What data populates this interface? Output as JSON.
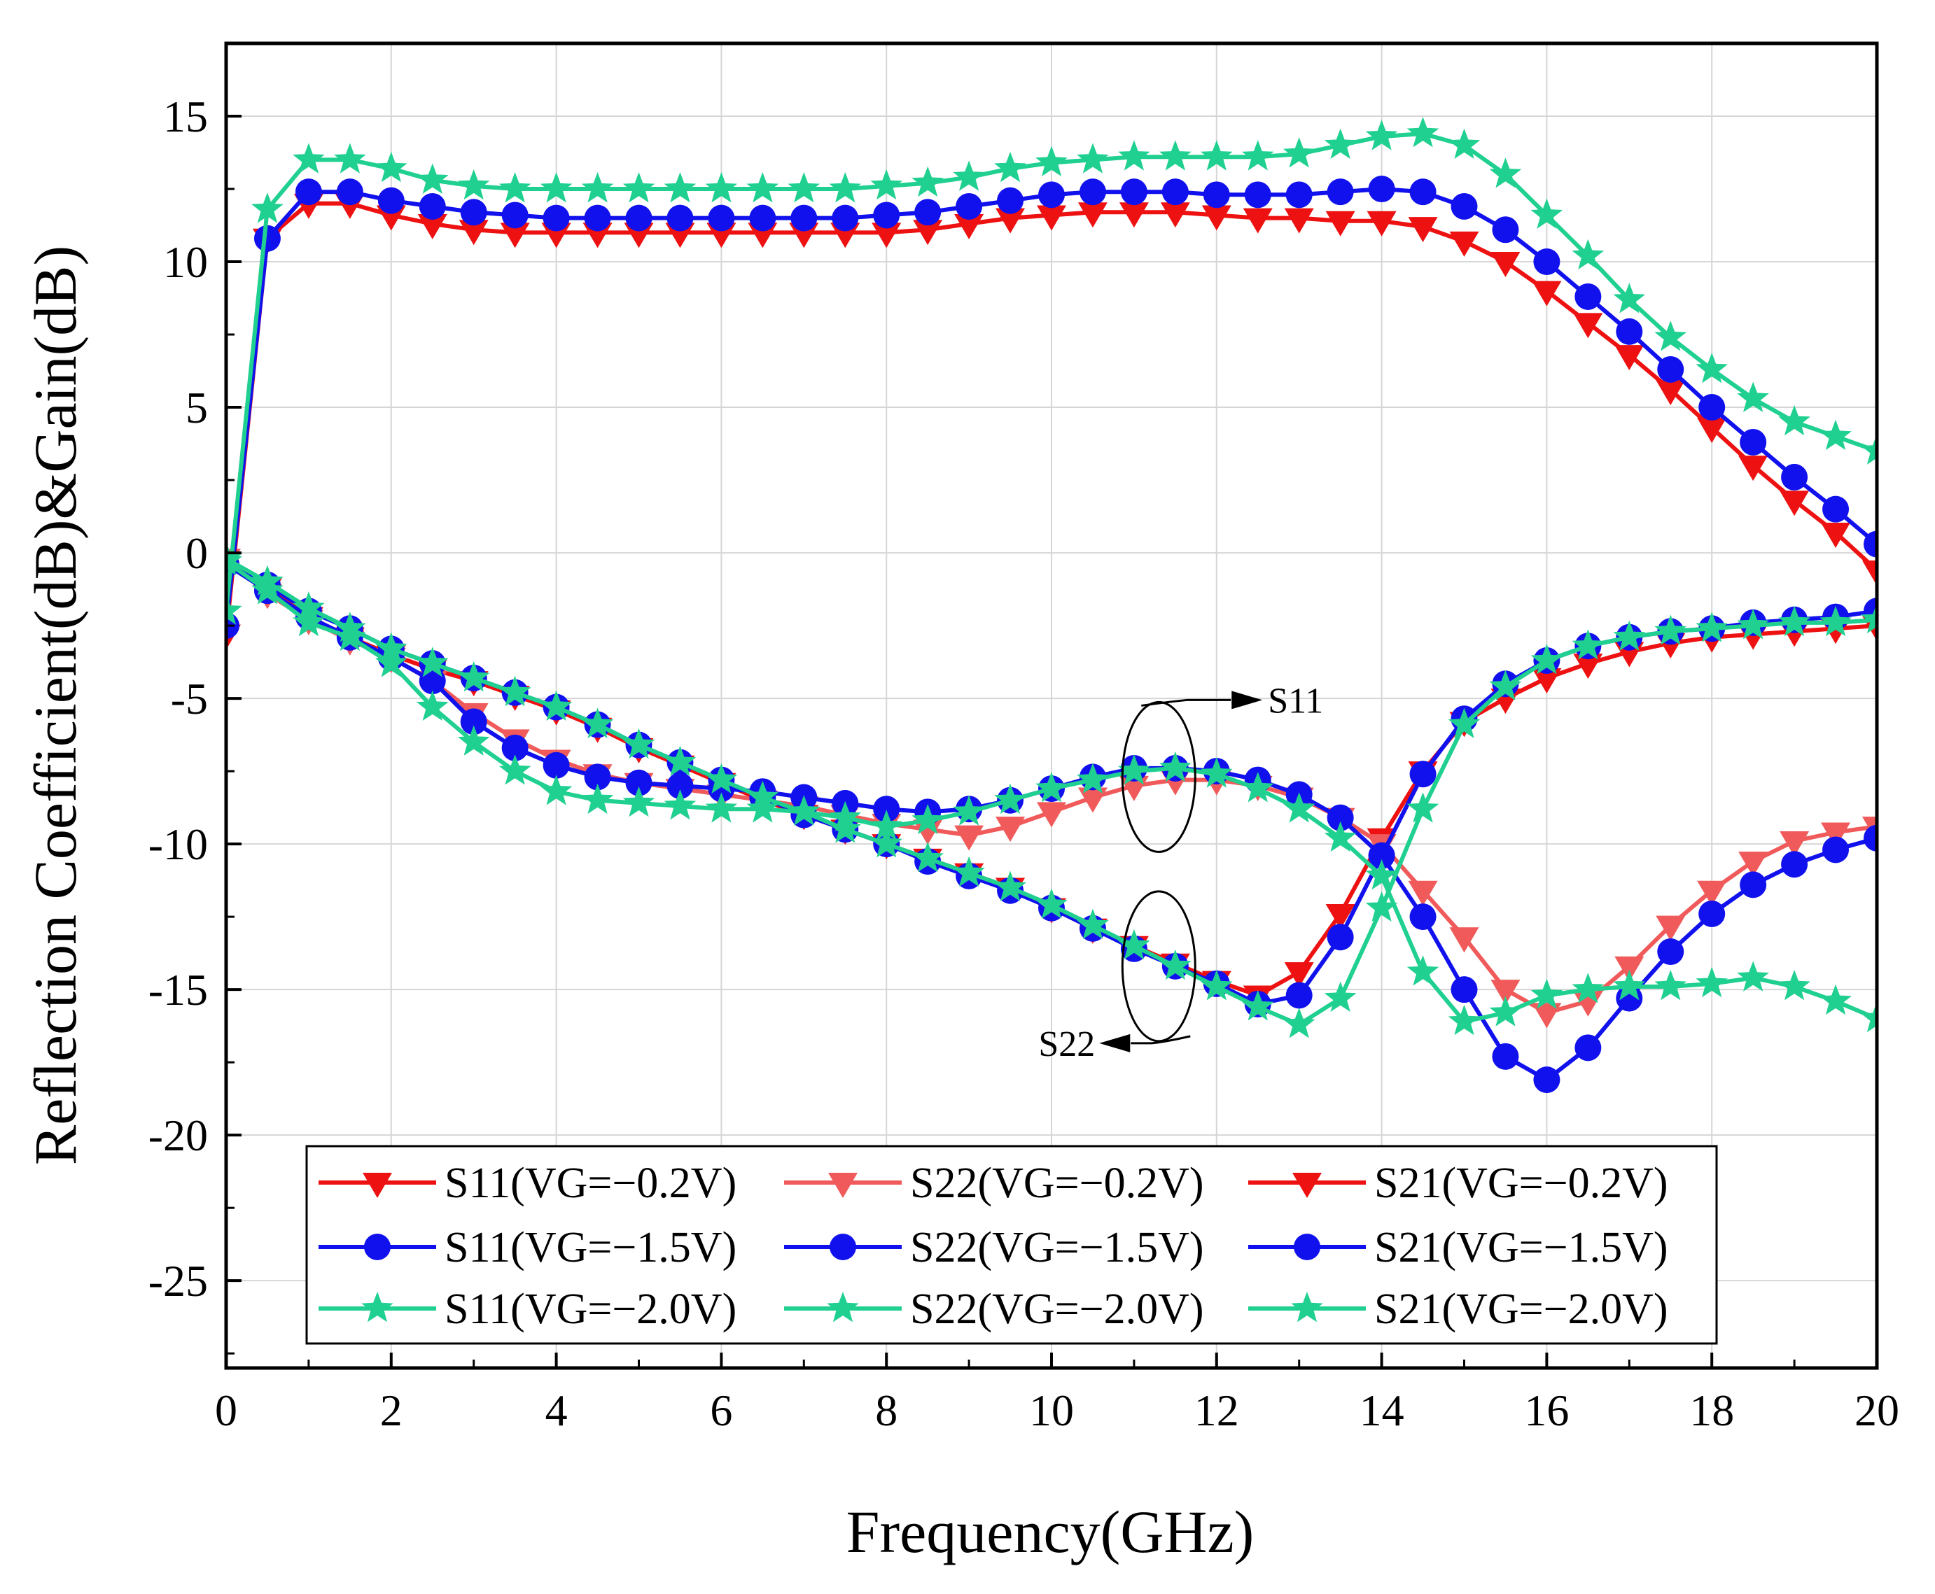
{
  "chart_data": {
    "type": "line",
    "title": "",
    "xlabel": "Frequency(GHz)",
    "ylabel": "Reflection Coefficient(dB)&Gain(dB)",
    "xlim": [
      0,
      20
    ],
    "ylim": [
      -28,
      17.5
    ],
    "xticks": [
      0,
      2,
      4,
      6,
      8,
      10,
      12,
      14,
      16,
      18,
      20
    ],
    "yticks": [
      -25,
      -20,
      -15,
      -10,
      -5,
      0,
      5,
      10,
      15
    ],
    "xtick_labels": [
      "0",
      "2",
      "4",
      "6",
      "8",
      "10",
      "12",
      "14",
      "16",
      "18",
      "20"
    ],
    "ytick_labels": [
      "-25",
      "-20",
      "-15",
      "-10",
      "-5",
      "0",
      "5",
      "10",
      "15"
    ],
    "grid": true,
    "legend_position": "bottom-center",
    "x": [
      0,
      0.5,
      1,
      1.5,
      2,
      2.5,
      3,
      3.5,
      4,
      4.5,
      5,
      5.5,
      6,
      6.5,
      7,
      7.5,
      8,
      8.5,
      9,
      9.5,
      10,
      10.5,
      11,
      11.5,
      12,
      12.5,
      13,
      13.5,
      14,
      14.5,
      15,
      15.5,
      16,
      16.5,
      17,
      17.5,
      18,
      18.5,
      19,
      19.5,
      20
    ],
    "series": [
      {
        "name": "S11(VG=−0.2V)",
        "color": "#ee1111",
        "marker": "triangle-down",
        "values": [
          -0.3,
          -1.2,
          -2.2,
          -2.9,
          -3.5,
          -4.0,
          -4.4,
          -4.9,
          -5.4,
          -6.0,
          -6.7,
          -7.3,
          -7.9,
          -8.5,
          -9.0,
          -9.5,
          -10.0,
          -10.5,
          -11.0,
          -11.5,
          -12.2,
          -12.9,
          -13.5,
          -14.1,
          -14.7,
          -15.2,
          -14.4,
          -12.4,
          -9.8,
          -7.5,
          -5.8,
          -5.0,
          -4.3,
          -3.8,
          -3.4,
          -3.1,
          -2.9,
          -2.8,
          -2.7,
          -2.6,
          -2.5
        ]
      },
      {
        "name": "S22(VG=−0.2V)",
        "color": "#f05a5a",
        "marker": "triangle-down",
        "values": [
          -0.2,
          -1.4,
          -2.3,
          -3.0,
          -3.6,
          -4.4,
          -5.5,
          -6.4,
          -7.1,
          -7.6,
          -7.9,
          -8.1,
          -8.3,
          -8.5,
          -8.7,
          -9.0,
          -9.3,
          -9.5,
          -9.7,
          -9.4,
          -8.9,
          -8.4,
          -8.0,
          -7.8,
          -7.8,
          -8.0,
          -8.4,
          -9.1,
          -10.0,
          -11.6,
          -13.2,
          -15.0,
          -15.8,
          -15.4,
          -14.2,
          -12.8,
          -11.6,
          -10.6,
          -9.9,
          -9.6,
          -9.4
        ]
      },
      {
        "name": "S21(VG=−0.2V)",
        "color": "#ee1111",
        "marker": "triangle-down",
        "values": [
          -2.8,
          10.8,
          12.0,
          12.0,
          11.6,
          11.3,
          11.1,
          11.0,
          11.0,
          11.0,
          11.0,
          11.0,
          11.0,
          11.0,
          11.0,
          11.0,
          11.0,
          11.1,
          11.3,
          11.5,
          11.6,
          11.7,
          11.7,
          11.7,
          11.6,
          11.5,
          11.5,
          11.4,
          11.4,
          11.2,
          10.7,
          10.0,
          9.0,
          7.9,
          6.8,
          5.6,
          4.3,
          3.0,
          1.8,
          0.7,
          -0.6
        ]
      },
      {
        "name": "S11(VG=−1.5V)",
        "color": "#1111ee",
        "marker": "circle",
        "values": [
          -0.4,
          -1.1,
          -2.0,
          -2.6,
          -3.3,
          -3.8,
          -4.3,
          -4.8,
          -5.3,
          -5.9,
          -6.6,
          -7.2,
          -7.8,
          -8.4,
          -9.0,
          -9.5,
          -10.0,
          -10.6,
          -11.1,
          -11.6,
          -12.2,
          -12.9,
          -13.6,
          -14.2,
          -14.8,
          -15.5,
          -15.2,
          -13.2,
          -10.4,
          -7.6,
          -5.7,
          -4.5,
          -3.7,
          -3.2,
          -2.9,
          -2.7,
          -2.6,
          -2.4,
          -2.3,
          -2.2,
          -2.0
        ]
      },
      {
        "name": "S22(VG=−1.5V)",
        "color": "#1111ee",
        "marker": "circle",
        "values": [
          -0.4,
          -1.3,
          -2.2,
          -2.9,
          -3.6,
          -4.4,
          -5.8,
          -6.7,
          -7.3,
          -7.7,
          -7.9,
          -8.0,
          -8.1,
          -8.2,
          -8.4,
          -8.6,
          -8.8,
          -8.9,
          -8.8,
          -8.5,
          -8.1,
          -7.7,
          -7.4,
          -7.4,
          -7.5,
          -7.8,
          -8.3,
          -9.1,
          -10.4,
          -12.5,
          -15.0,
          -17.3,
          -18.1,
          -17.0,
          -15.3,
          -13.7,
          -12.4,
          -11.4,
          -10.7,
          -10.2,
          -9.8
        ]
      },
      {
        "name": "S21(VG=−1.5V)",
        "color": "#1111ee",
        "marker": "circle",
        "values": [
          -2.5,
          10.8,
          12.4,
          12.4,
          12.1,
          11.9,
          11.7,
          11.6,
          11.5,
          11.5,
          11.5,
          11.5,
          11.5,
          11.5,
          11.5,
          11.5,
          11.6,
          11.7,
          11.9,
          12.1,
          12.3,
          12.4,
          12.4,
          12.4,
          12.3,
          12.3,
          12.3,
          12.4,
          12.5,
          12.4,
          11.9,
          11.1,
          10.0,
          8.8,
          7.6,
          6.3,
          5.0,
          3.8,
          2.6,
          1.5,
          0.3
        ]
      },
      {
        "name": "S11(VG=−2.0V)",
        "color": "#20d090",
        "marker": "star",
        "values": [
          -0.2,
          -1.0,
          -1.9,
          -2.6,
          -3.3,
          -3.8,
          -4.3,
          -4.8,
          -5.3,
          -5.9,
          -6.6,
          -7.2,
          -7.8,
          -8.4,
          -8.9,
          -9.5,
          -10.0,
          -10.5,
          -11.0,
          -11.5,
          -12.1,
          -12.8,
          -13.5,
          -14.2,
          -14.9,
          -15.6,
          -16.2,
          -15.3,
          -12.2,
          -8.8,
          -5.9,
          -4.6,
          -3.7,
          -3.2,
          -2.9,
          -2.7,
          -2.6,
          -2.5,
          -2.4,
          -2.4,
          -2.3
        ]
      },
      {
        "name": "S22(VG=−2.0V)",
        "color": "#20d090",
        "marker": "star",
        "values": [
          -0.3,
          -1.3,
          -2.4,
          -2.9,
          -3.8,
          -5.3,
          -6.5,
          -7.5,
          -8.2,
          -8.5,
          -8.6,
          -8.7,
          -8.8,
          -8.8,
          -8.9,
          -9.1,
          -9.4,
          -9.2,
          -8.9,
          -8.5,
          -8.1,
          -7.8,
          -7.5,
          -7.4,
          -7.6,
          -8.1,
          -8.8,
          -9.8,
          -11.1,
          -14.4,
          -16.1,
          -15.8,
          -15.2,
          -15.0,
          -14.9,
          -14.9,
          -14.8,
          -14.6,
          -14.9,
          -15.4,
          -16.0
        ]
      },
      {
        "name": "S21(VG=−2.0V)",
        "color": "#20d090",
        "marker": "star",
        "values": [
          -2.0,
          11.8,
          13.5,
          13.5,
          13.2,
          12.8,
          12.6,
          12.5,
          12.5,
          12.5,
          12.5,
          12.5,
          12.5,
          12.5,
          12.5,
          12.5,
          12.6,
          12.7,
          12.9,
          13.2,
          13.4,
          13.5,
          13.6,
          13.6,
          13.6,
          13.6,
          13.7,
          14.0,
          14.3,
          14.4,
          14.0,
          13.0,
          11.6,
          10.2,
          8.7,
          7.4,
          6.3,
          5.3,
          4.5,
          4.0,
          3.5
        ]
      }
    ],
    "annotations": [
      {
        "text": "S11",
        "points_to": "upper-ellipse",
        "near_x": 11.3,
        "near_y": -7.7
      },
      {
        "text": "S22",
        "points_to": "lower-ellipse",
        "near_x": 11.3,
        "near_y": -14.2
      }
    ]
  }
}
